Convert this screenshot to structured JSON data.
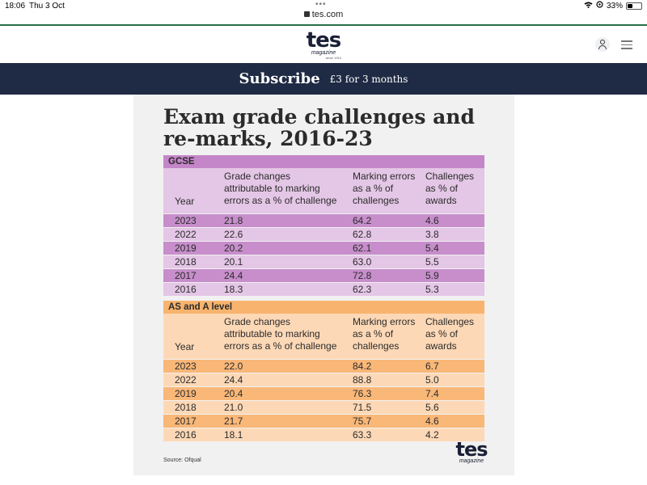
{
  "status_bar": {
    "time": "18:06",
    "date": "Thu 3 Oct",
    "battery": "33%"
  },
  "browser": {
    "url": "tes.com"
  },
  "site": {
    "logo_text": "tes",
    "logo_sub": "magazine",
    "logo_since": "since 1910"
  },
  "subscribe": {
    "label": "Subscribe",
    "offer": "£3 for 3 months"
  },
  "graphic": {
    "title_line1": "Exam grade challenges and",
    "title_line2": "re-marks, 2016-23",
    "source": "Source: Ofqual",
    "logo_text": "tes",
    "logo_sub": "magazine",
    "columns": {
      "year": "Year",
      "grade_1": "Grade changes",
      "grade_2": "attributable to marking",
      "grade_3": "errors as a % of challenge",
      "mark_1": "Marking errors",
      "mark_2": "as a % of",
      "mark_3": "challenges",
      "chal_1": "Challenges",
      "chal_2": "as % of",
      "chal_3": "awards"
    },
    "gcse": {
      "title": "GCSE",
      "rows": [
        {
          "year": "2023",
          "grade": "21.8",
          "marking": "64.2",
          "challenges": "4.6"
        },
        {
          "year": "2022",
          "grade": "22.6",
          "marking": "62.8",
          "challenges": "3.8"
        },
        {
          "year": "2019",
          "grade": "20.2",
          "marking": "62.1",
          "challenges": "5.4"
        },
        {
          "year": "2018",
          "grade": "20.1",
          "marking": "63.0",
          "challenges": "5.5"
        },
        {
          "year": "2017",
          "grade": "24.4",
          "marking": "72.8",
          "challenges": "5.9"
        },
        {
          "year": "2016",
          "grade": "18.3",
          "marking": "62.3",
          "challenges": "5.3"
        }
      ]
    },
    "as_a": {
      "title": "AS and A level",
      "rows": [
        {
          "year": "2023",
          "grade": "22.0",
          "marking": "84.2",
          "challenges": "6.7"
        },
        {
          "year": "2022",
          "grade": "24.4",
          "marking": "88.8",
          "challenges": "5.0"
        },
        {
          "year": "2019",
          "grade": "20.4",
          "marking": "76.3",
          "challenges": "7.4"
        },
        {
          "year": "2018",
          "grade": "21.0",
          "marking": "71.5",
          "challenges": "5.6"
        },
        {
          "year": "2017",
          "grade": "21.7",
          "marking": "75.7",
          "challenges": "4.6"
        },
        {
          "year": "2016",
          "grade": "18.1",
          "marking": "63.3",
          "challenges": "4.2"
        }
      ]
    }
  }
}
